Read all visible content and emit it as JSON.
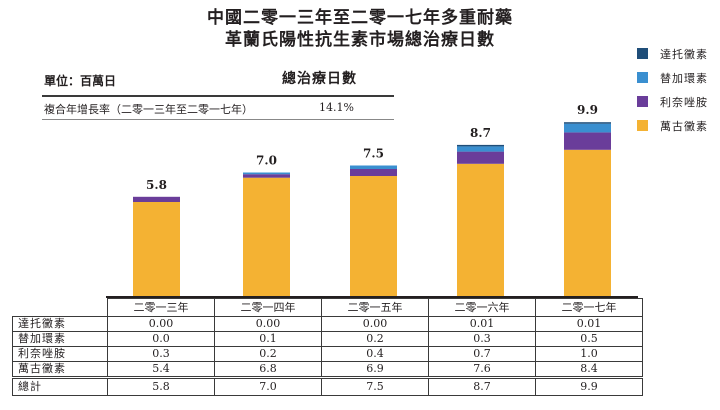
{
  "title_line1": "中國二零一三年至二零一七年多重耐藥",
  "title_line2": "革蘭氏陽性抗生素市場總治療日數",
  "unit_label": "單位：百萬日",
  "metric_header": "總治療日數",
  "cagr_label": "複合年增長率（二零一三年至二零一七年）",
  "cagr_value": "14.1%",
  "colors": {
    "daptomycin": "#1f4e79",
    "tigecycline": "#3a8fd0",
    "linezolid": "#6a3d9a",
    "vancomycin": "#f4b233"
  },
  "chart_data": {
    "type": "bar",
    "stacked": true,
    "title": "中國二零一三年至二零一七年多重耐藥革蘭氏陽性抗生素市場總治療日數",
    "ylabel": "單位：百萬日",
    "categories": [
      "二零一三年",
      "二零一四年",
      "二零一五年",
      "二零一六年",
      "二零一七年"
    ],
    "series": [
      {
        "name": "萬古黴素",
        "key": "vancomycin",
        "values": [
          5.4,
          6.8,
          6.9,
          7.6,
          8.4
        ],
        "display": [
          "5.4",
          "6.8",
          "6.9",
          "7.6",
          "8.4"
        ]
      },
      {
        "name": "利奈唑胺",
        "key": "linezolid",
        "values": [
          0.3,
          0.2,
          0.4,
          0.7,
          1.0
        ],
        "display": [
          "0.3",
          "0.2",
          "0.4",
          "0.7",
          "1.0"
        ]
      },
      {
        "name": "替加環素",
        "key": "tigecycline",
        "values": [
          0.0,
          0.1,
          0.2,
          0.3,
          0.5
        ],
        "display": [
          "0.0",
          "0.1",
          "0.2",
          "0.3",
          "0.5"
        ]
      },
      {
        "name": "達托黴素",
        "key": "daptomycin",
        "values": [
          0.0,
          0.0,
          0.0,
          0.01,
          0.01
        ],
        "display": [
          "0.00",
          "0.00",
          "0.00",
          "0.01",
          "0.01"
        ]
      }
    ],
    "totals": [
      5.8,
      7.0,
      7.5,
      8.7,
      9.9
    ],
    "totals_display": [
      "5.8",
      "7.0",
      "7.5",
      "8.7",
      "9.9"
    ],
    "ylim": [
      0,
      10
    ],
    "grid": false,
    "legend_position": "right",
    "legend_order": [
      "達托黴素",
      "替加環素",
      "利奈唑胺",
      "萬古黴素"
    ]
  },
  "table": {
    "total_label": "總計"
  }
}
